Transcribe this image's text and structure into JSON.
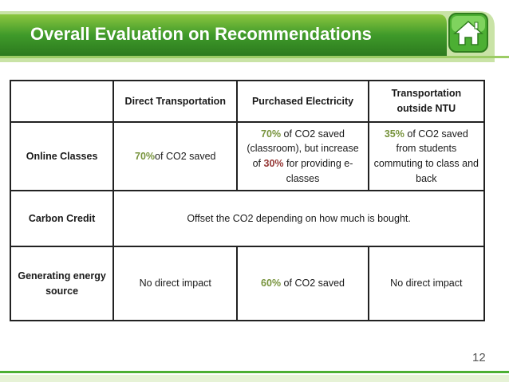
{
  "header": {
    "title": "Overall Evaluation on Recommendations"
  },
  "table": {
    "columns": [
      "Direct Transportation",
      "Purchased Electricity",
      "Transportation outside NTU"
    ],
    "rows": [
      {
        "label": "Online Classes",
        "cells": [
          [
            {
              "text": "70%",
              "color": "#77933c"
            },
            {
              "text": "of CO2 saved"
            }
          ],
          [
            {
              "text": "70%",
              "color": "#77933c"
            },
            {
              "text": " of CO2 saved (classroom), but increase of "
            },
            {
              "text": "30%",
              "color": "#953735"
            },
            {
              "text": " for providing e-classes"
            }
          ],
          [
            {
              "text": "35%",
              "color": "#77933c"
            },
            {
              "text": " of CO2 saved from students commuting to class and back"
            }
          ]
        ]
      },
      {
        "label": "Carbon Credit",
        "cells": [
          [
            {
              "text": "Offset the CO2 depending on how much is bought."
            }
          ]
        ]
      },
      {
        "label": "Generating energy source",
        "cells": [
          [
            {
              "text": "No direct impact"
            }
          ],
          [
            {
              "text": "60%",
              "color": "#77933c"
            },
            {
              "text": " of CO2 saved"
            }
          ],
          [
            {
              "text": "No direct impact"
            }
          ]
        ]
      }
    ]
  },
  "page_number": "12"
}
